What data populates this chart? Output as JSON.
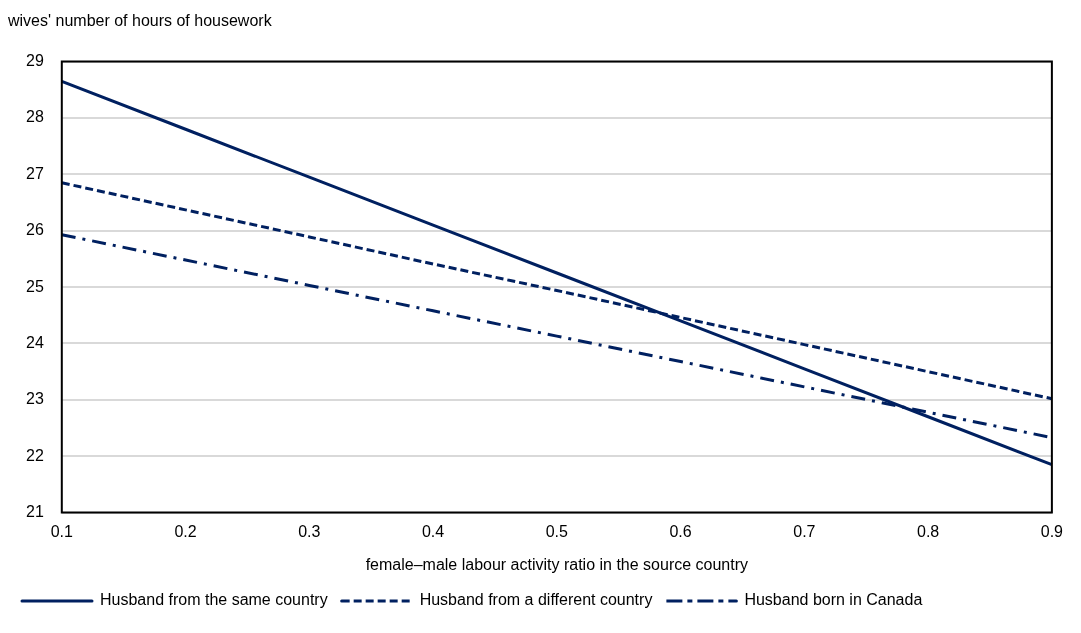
{
  "chart_data": {
    "type": "line",
    "ylabel": "wives' number of hours of housework",
    "xlabel": "female–male labour activity ratio in the source country",
    "categories": [
      "0.1",
      "0.2",
      "0.3",
      "0.4",
      "0.5",
      "0.6",
      "0.7",
      "0.8",
      "0.9"
    ],
    "ylim": [
      21,
      29
    ],
    "yticks": [
      21,
      22,
      23,
      24,
      25,
      26,
      27,
      28,
      29
    ],
    "grid": "y",
    "legend": "bottom",
    "marker": "none",
    "series": [
      {
        "name": "Husband from the same country",
        "color": "#002060",
        "line_style": "solid",
        "values": [
          28.65,
          27.8,
          26.95,
          26.1,
          25.25,
          24.4,
          23.55,
          22.7,
          21.85
        ]
      },
      {
        "name": "Husband from a different country",
        "color": "#002060",
        "line_style": "dashed",
        "values": [
          26.85,
          26.37,
          25.89,
          25.41,
          24.94,
          24.46,
          23.98,
          23.5,
          23.02
        ]
      },
      {
        "name": "Husband born in Canada",
        "color": "#002060",
        "line_style": "dashdot",
        "values": [
          25.93,
          25.48,
          25.03,
          24.58,
          24.13,
          23.68,
          23.23,
          22.78,
          22.33
        ]
      }
    ]
  }
}
